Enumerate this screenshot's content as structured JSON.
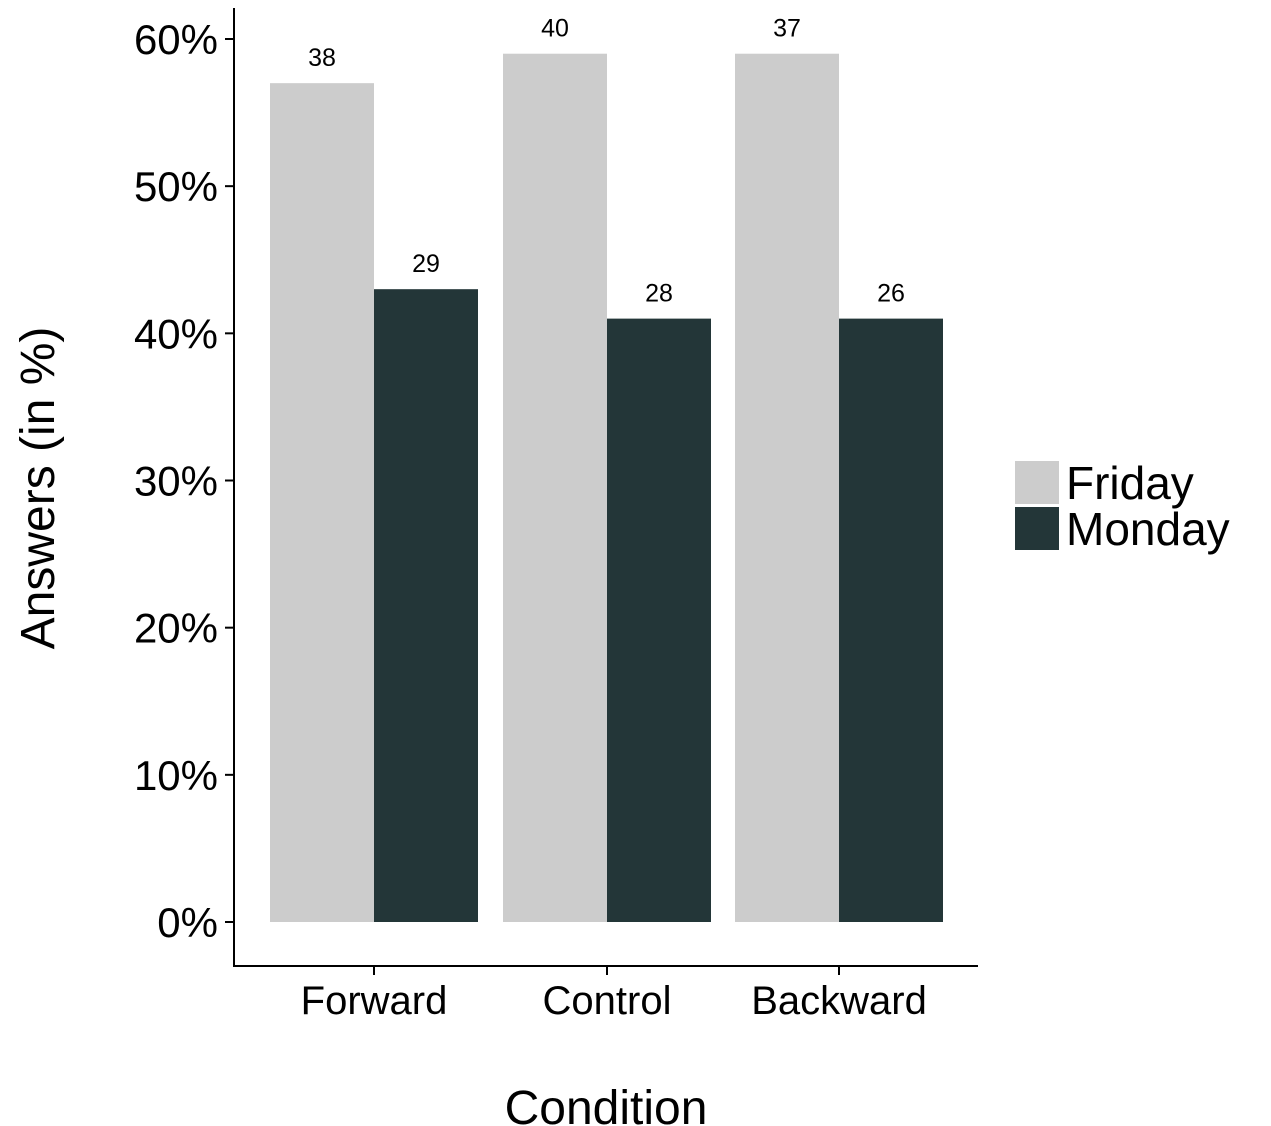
{
  "chart_data": {
    "type": "bar",
    "categories": [
      "Forward",
      "Control",
      "Backward"
    ],
    "series": [
      {
        "name": "Friday",
        "color": "#cccccc",
        "values": [
          57,
          59,
          59
        ],
        "labels": [
          "38",
          "40",
          "37"
        ]
      },
      {
        "name": "Monday",
        "color": "#233638",
        "values": [
          43,
          41,
          41
        ],
        "labels": [
          "29",
          "28",
          "26"
        ]
      }
    ],
    "title": "",
    "xlabel": "Condition",
    "ylabel": "Answers (in %)",
    "ylim": [
      0,
      60
    ],
    "yticks": [
      0,
      10,
      20,
      30,
      40,
      50,
      60
    ],
    "ytick_format": "{v}%",
    "grid": false,
    "legend_position": "right"
  }
}
